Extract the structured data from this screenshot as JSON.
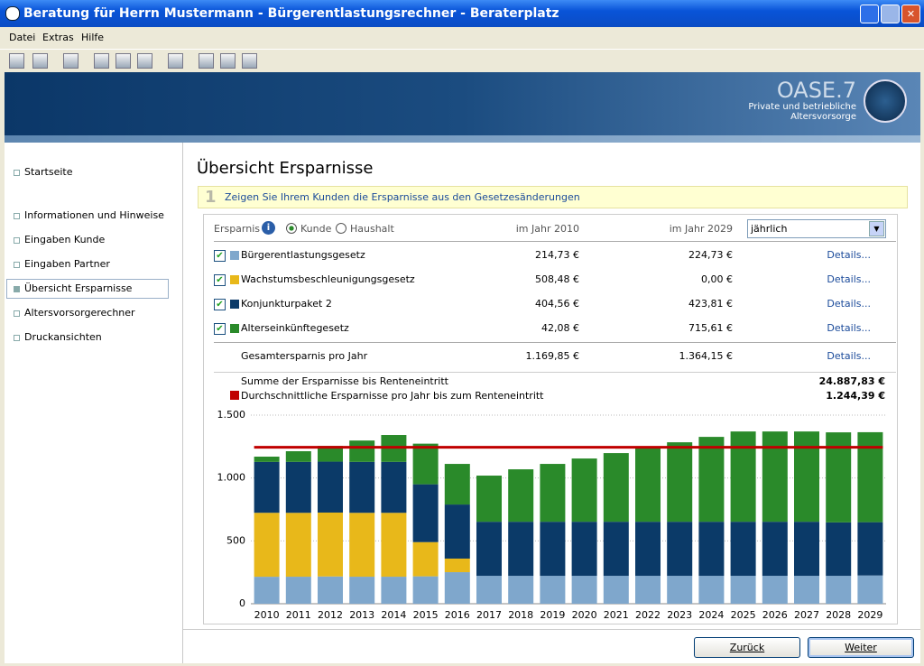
{
  "window": {
    "title": "Beratung für Herrn Mustermann - Bürgerentlastungsrechner - Beraterplatz"
  },
  "menu": [
    "Datei",
    "Extras",
    "Hilfe"
  ],
  "brand": {
    "name": "OASE.7",
    "line1": "Private und betriebliche",
    "line2": "Altersvorsorge"
  },
  "sidebar": [
    "Startseite",
    "Informationen und Hinweise",
    "Eingaben Kunde",
    "Eingaben Partner",
    "Übersicht Ersparnisse",
    "Altersvorsorgerechner",
    "Druckansichten"
  ],
  "heading": "Übersicht Ersparnisse",
  "hint": {
    "step": "1",
    "text": "Zeigen Sie Ihrem Kunden die Ersparnisse aus den Gesetzesänderungen"
  },
  "table": {
    "label": "Ersparnis",
    "options": [
      "Kunde",
      "Haushalt"
    ],
    "columns": [
      "im Jahr 2010",
      "im Jahr 2029"
    ],
    "period": "jährlich",
    "rows": [
      {
        "name": "Bürgerentlastungsgesetz",
        "first": "214,73 €",
        "last": "224,73 €",
        "link": "Details..."
      },
      {
        "name": "Wachstumsbeschleunigungsgesetz",
        "first": "508,48 €",
        "last": "0,00 €",
        "link": "Details..."
      },
      {
        "name": "Konjunkturpaket 2",
        "first": "404,56 €",
        "last": "423,81 €",
        "link": "Details..."
      },
      {
        "name": "Alterseinkünftegesetz",
        "first": "42,08 €",
        "last": "715,61 €",
        "link": "Details..."
      }
    ],
    "total": {
      "name": "Gesamtersparnis pro Jahr",
      "first": "1.169,85 €",
      "last": "1.364,15 €",
      "link": "Details..."
    }
  },
  "summary": [
    {
      "label": "Summe der Ersparnisse bis Renteneintritt",
      "value": "24.887,83 €"
    },
    {
      "label": "Durchschnittliche Ersparnisse pro Jahr bis zum Renteneintritt",
      "value": "1.244,39 €"
    }
  ],
  "chart_data": {
    "type": "bar",
    "stacked": true,
    "categories": [
      "2010",
      "2011",
      "2012",
      "2013",
      "2014",
      "2015",
      "2016",
      "2017",
      "2018",
      "2019",
      "2020",
      "2021",
      "2022",
      "2023",
      "2024",
      "2025",
      "2026",
      "2027",
      "2028",
      "2029"
    ],
    "series": [
      {
        "name": "Bürgerentlastungsgesetz",
        "color": "#7fa7cc",
        "values": [
          214.73,
          215,
          217,
          215,
          215,
          218,
          251,
          222,
          222,
          222,
          222,
          222,
          222,
          222,
          222,
          222,
          222,
          222,
          222,
          224.73
        ]
      },
      {
        "name": "Wachstumsbeschleunigungsgesetz",
        "color": "#e8b81a",
        "values": [
          508.48,
          508,
          508,
          508,
          508,
          272,
          108,
          0,
          0,
          0,
          0,
          0,
          0,
          0,
          0,
          0,
          0,
          0,
          0,
          0
        ]
      },
      {
        "name": "Konjunkturpaket 2",
        "color": "#0b3a68",
        "values": [
          404.56,
          405,
          405,
          405,
          405,
          460,
          430,
          430,
          430,
          430,
          430,
          430,
          430,
          430,
          430,
          430,
          430,
          430,
          425,
          423.81
        ]
      },
      {
        "name": "Alterseinkünftegesetz",
        "color": "#2a8a2a",
        "values": [
          42.08,
          85,
          125,
          170,
          214,
          323,
          323,
          367,
          417,
          460,
          503,
          546,
          589,
          632,
          675,
          718,
          718,
          718,
          716,
          715.61
        ]
      }
    ],
    "average": {
      "value": 1244.39,
      "color": "#c00000"
    },
    "ylim": [
      0,
      1500
    ],
    "yticks": [
      0,
      500,
      {
        "value": 1000,
        "label": "1.000"
      },
      {
        "value": 1500,
        "label": "1.500"
      }
    ],
    "grid": true
  },
  "buttons": [
    "Zurück",
    "Weiter"
  ]
}
